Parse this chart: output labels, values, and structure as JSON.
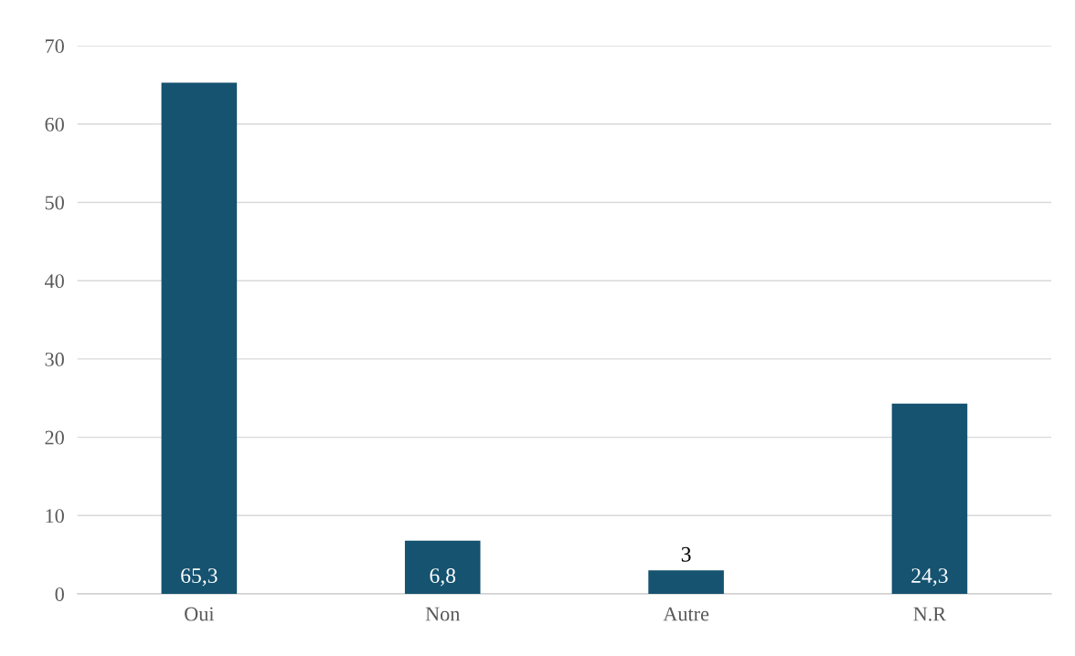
{
  "chart_data": {
    "type": "bar",
    "categories": [
      "Oui",
      "Non",
      "Autre",
      "N.R"
    ],
    "values": [
      65.3,
      6.8,
      3,
      24.3
    ],
    "value_labels": [
      "65,3",
      "6,8",
      "3",
      "24,3"
    ],
    "color": "#155370",
    "ylim": [
      0,
      70
    ],
    "yticks": [
      0,
      10,
      20,
      30,
      40,
      50,
      60,
      70
    ],
    "grid": "y"
  }
}
